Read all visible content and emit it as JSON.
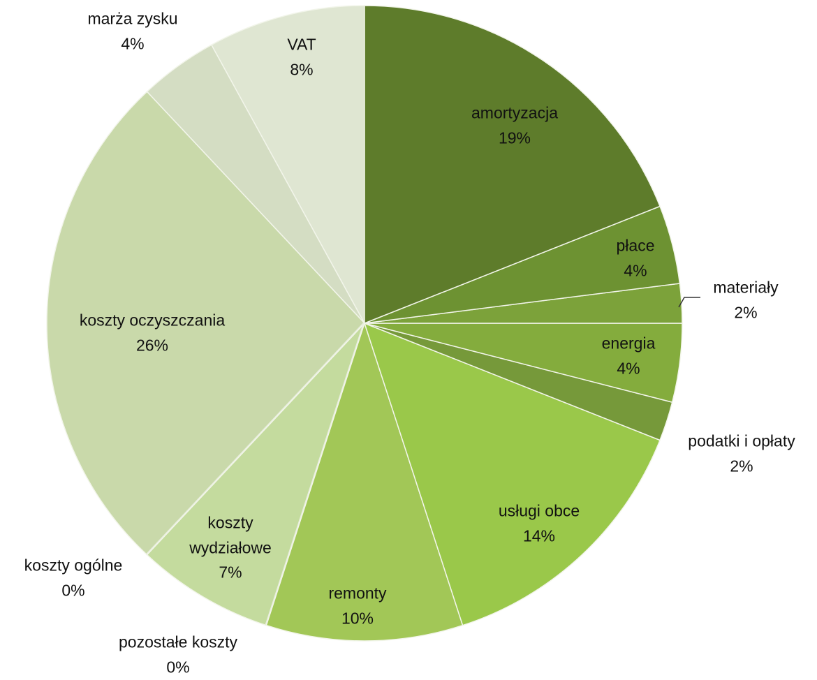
{
  "chart_data": {
    "type": "pie",
    "categories": [
      "amortyzacja",
      "płace",
      "materiały",
      "energia",
      "podatki i opłaty",
      "usługi obce",
      "remonty",
      "pozostałe koszty",
      "koszty wydziałowe",
      "koszty ogólne",
      "koszty oczyszczania",
      "marża zysku",
      "VAT"
    ],
    "values": [
      19,
      4,
      2,
      4,
      2,
      14,
      10,
      0,
      7,
      0,
      26,
      4,
      8
    ],
    "value_labels": [
      "19%",
      "4%",
      "2%",
      "4%",
      "2%",
      "14%",
      "10%",
      "0%",
      "7%",
      "0%",
      "26%",
      "4%",
      "8%"
    ],
    "colors": [
      "#5e7c2b",
      "#6d9232",
      "#7ca23a",
      "#84ac3d",
      "#76993a",
      "#9ac84a",
      "#a2c757",
      "#b8d286",
      "#c4db9e",
      "#c0d19a",
      "#c9d9aa",
      "#d4ddc3",
      "#dfe6d2"
    ]
  }
}
